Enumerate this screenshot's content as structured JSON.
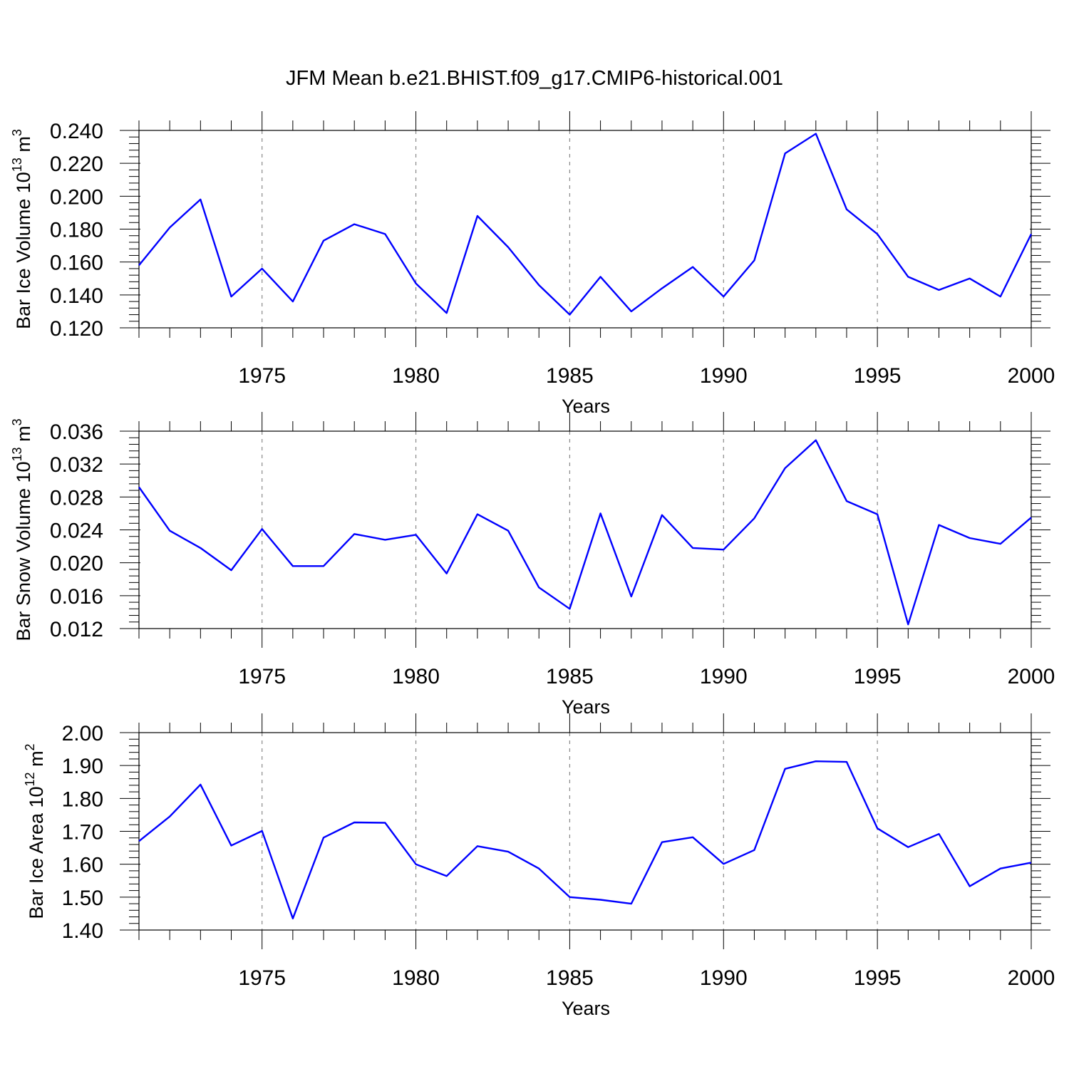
{
  "title": "JFM Mean b.e21.BHIST.f09_g17.CMIP6-historical.001",
  "colors": {
    "series": "#0000ff",
    "grid": "#888888",
    "axis": "#000000"
  },
  "chart_data": [
    {
      "type": "line",
      "ylabel": "Bar Ice Volume 10",
      "ylabel_exp": "13",
      "ylabel_unit": " m",
      "ylabel_unit_exp": "3",
      "xlabel": "Years",
      "xlim": [
        1971,
        2000
      ],
      "ylim": [
        0.12,
        0.24
      ],
      "yticks": [
        "0.120",
        "0.140",
        "0.160",
        "0.180",
        "0.200",
        "0.220",
        "0.240"
      ],
      "xticks": [
        "1975",
        "1980",
        "1985",
        "1990",
        "1995",
        "2000"
      ],
      "grid_x": true,
      "x": [
        1971,
        1972,
        1973,
        1974,
        1975,
        1976,
        1977,
        1978,
        1979,
        1980,
        1981,
        1982,
        1983,
        1984,
        1985,
        1986,
        1987,
        1988,
        1989,
        1990,
        1991,
        1992,
        1993,
        1994,
        1995,
        1996,
        1997,
        1998,
        1999,
        2000
      ],
      "values": [
        0.158,
        0.181,
        0.198,
        0.139,
        0.156,
        0.136,
        0.173,
        0.183,
        0.177,
        0.147,
        0.129,
        0.188,
        0.169,
        0.146,
        0.128,
        0.151,
        0.13,
        0.144,
        0.157,
        0.139,
        0.161,
        0.226,
        0.238,
        0.192,
        0.177,
        0.151,
        0.143,
        0.15,
        0.139,
        0.177
      ]
    },
    {
      "type": "line",
      "ylabel": "Bar Snow Volume 10",
      "ylabel_exp": "13",
      "ylabel_unit": " m",
      "ylabel_unit_exp": "3",
      "xlabel": "Years",
      "xlim": [
        1971,
        2000
      ],
      "ylim": [
        0.012,
        0.036
      ],
      "yticks": [
        "0.012",
        "0.016",
        "0.020",
        "0.024",
        "0.028",
        "0.032",
        "0.036"
      ],
      "xticks": [
        "1975",
        "1980",
        "1985",
        "1990",
        "1995",
        "2000"
      ],
      "grid_x": true,
      "x": [
        1971,
        1972,
        1973,
        1974,
        1975,
        1976,
        1977,
        1978,
        1979,
        1980,
        1981,
        1982,
        1983,
        1984,
        1985,
        1986,
        1987,
        1988,
        1989,
        1990,
        1991,
        1992,
        1993,
        1994,
        1995,
        1996,
        1997,
        1998,
        1999,
        2000
      ],
      "values": [
        0.0292,
        0.0239,
        0.0218,
        0.0191,
        0.0241,
        0.0196,
        0.0196,
        0.0235,
        0.0228,
        0.0234,
        0.0187,
        0.0259,
        0.0239,
        0.017,
        0.0144,
        0.026,
        0.0159,
        0.0258,
        0.0218,
        0.0216,
        0.0254,
        0.0315,
        0.0349,
        0.0275,
        0.0259,
        0.0125,
        0.0246,
        0.023,
        0.0223,
        0.0255
      ]
    },
    {
      "type": "line",
      "ylabel": "Bar Ice Area 10",
      "ylabel_exp": "12",
      "ylabel_unit": " m",
      "ylabel_unit_exp": "2",
      "xlabel": "Years",
      "xlim": [
        1971,
        2000
      ],
      "ylim": [
        1.4,
        2.0
      ],
      "yticks": [
        "1.40",
        "1.50",
        "1.60",
        "1.70",
        "1.80",
        "1.90",
        "2.00"
      ],
      "xticks": [
        "1975",
        "1980",
        "1985",
        "1990",
        "1995",
        "2000"
      ],
      "grid_x": true,
      "x": [
        1971,
        1972,
        1973,
        1974,
        1975,
        1976,
        1977,
        1978,
        1979,
        1980,
        1981,
        1982,
        1983,
        1984,
        1985,
        1986,
        1987,
        1988,
        1989,
        1990,
        1991,
        1992,
        1993,
        1994,
        1995,
        1996,
        1997,
        1998,
        1999,
        2000
      ],
      "values": [
        1.67,
        1.745,
        1.842,
        1.657,
        1.701,
        1.435,
        1.681,
        1.727,
        1.726,
        1.6,
        1.564,
        1.655,
        1.638,
        1.587,
        1.5,
        1.492,
        1.48,
        1.667,
        1.682,
        1.601,
        1.643,
        1.89,
        1.913,
        1.911,
        1.709,
        1.652,
        1.692,
        1.533,
        1.587,
        1.605
      ]
    }
  ]
}
